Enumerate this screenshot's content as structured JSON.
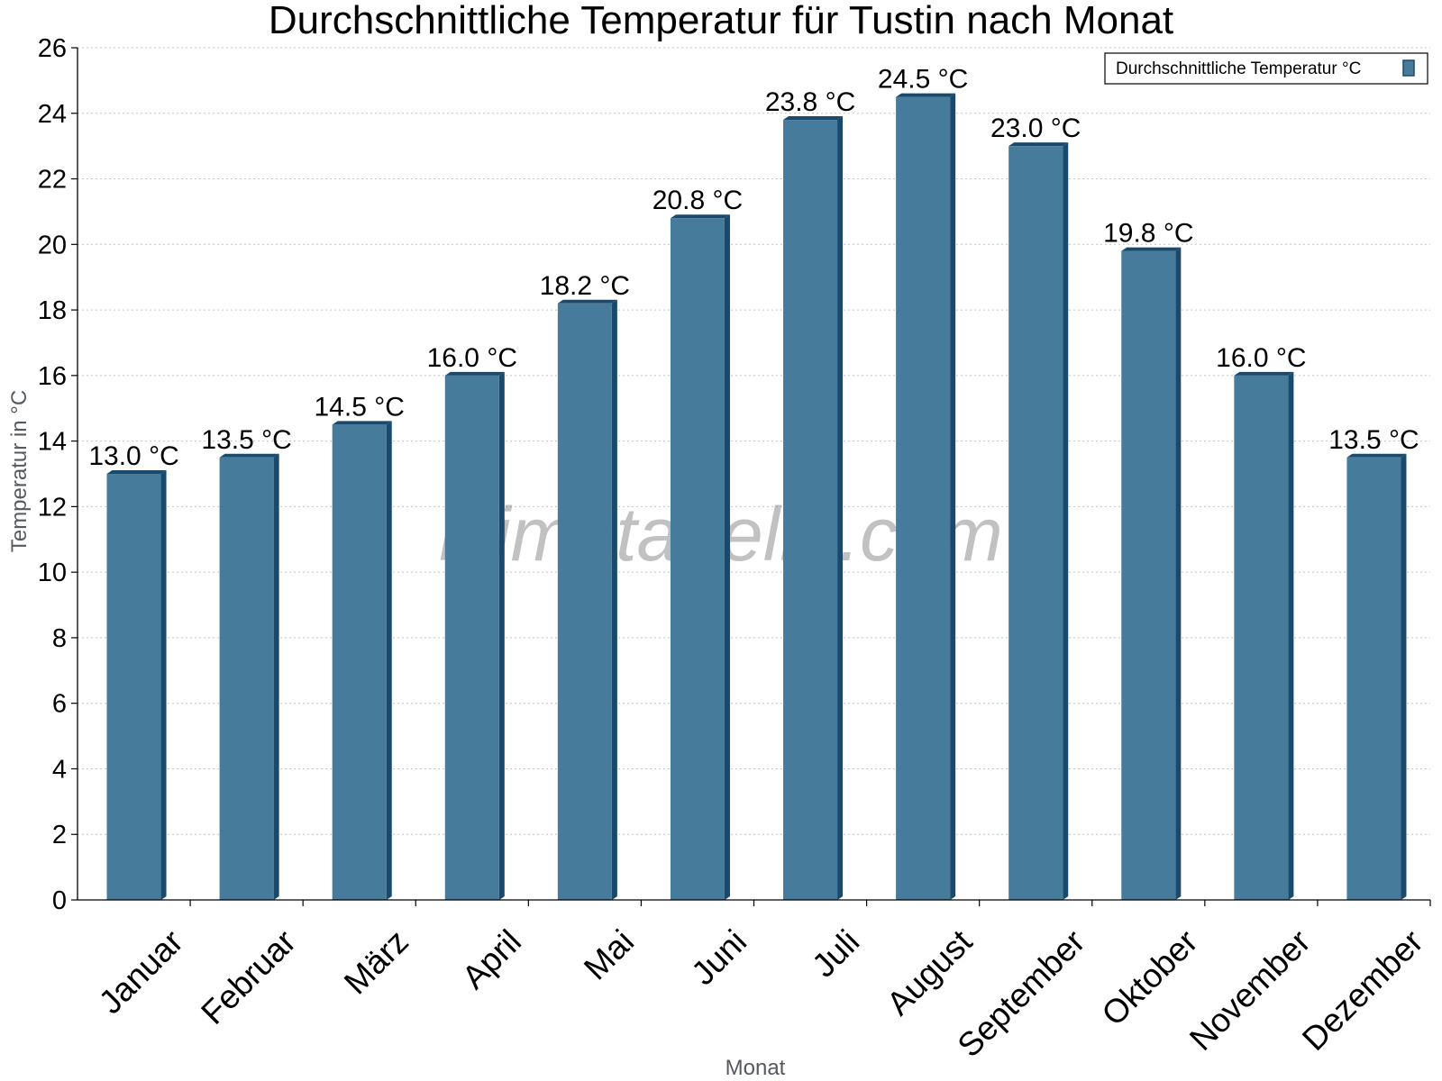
{
  "chart_data": {
    "type": "bar",
    "title": "Durchschnittliche Temperatur für Tustin nach Monat",
    "xlabel": "Monat",
    "ylabel": "Temperatur in °C",
    "ylim": [
      0,
      26
    ],
    "ytick_step": 2,
    "grid": true,
    "legend_position": "top-right",
    "categories": [
      "Januar",
      "Februar",
      "März",
      "April",
      "Mai",
      "Juni",
      "Juli",
      "August",
      "September",
      "Oktober",
      "November",
      "Dezember"
    ],
    "series": [
      {
        "name": "Durchschnittliche Temperatur °C",
        "values": [
          13.0,
          13.5,
          14.5,
          16.0,
          18.2,
          20.8,
          23.8,
          24.5,
          23.0,
          19.8,
          16.0,
          13.5
        ],
        "labels": [
          "13.0 °C",
          "13.5 °C",
          "14.5 °C",
          "16.0 °C",
          "18.2 °C",
          "20.8 °C",
          "23.8 °C",
          "24.5 °C",
          "23.0 °C",
          "19.8 °C",
          "16.0 °C",
          "13.5 °C"
        ],
        "color": "#467b9c",
        "edge_color": "#1a4a6b"
      }
    ],
    "watermark": "klimatabelle.com"
  }
}
